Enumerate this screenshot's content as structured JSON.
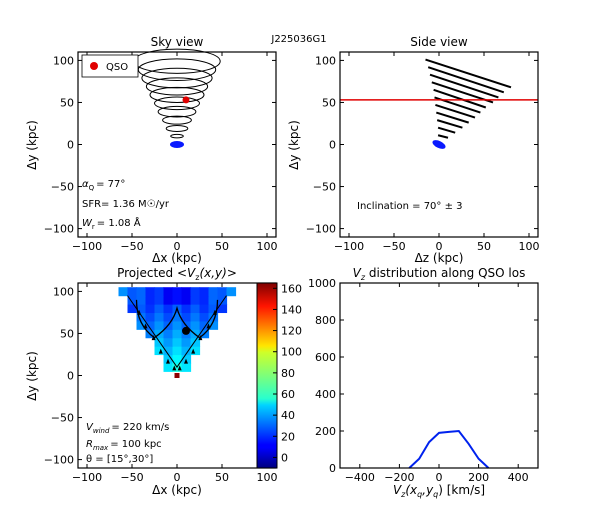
{
  "figure_title": "J225036G1",
  "chart_data": [
    {
      "id": "sky",
      "type": "scatter",
      "title": "Sky view",
      "xlabel": "Δx (kpc)",
      "ylabel": "Δy (kpc)",
      "xlim": [
        -110,
        110
      ],
      "ylim": [
        -110,
        110
      ],
      "xticks": [
        "−100",
        "−50",
        "0",
        "50",
        "100"
      ],
      "yticks": [
        "100",
        "50",
        "0",
        "−50",
        "−100"
      ],
      "legend": {
        "label": "QSO",
        "placement": "top-left"
      },
      "qso": {
        "x": 10,
        "y": 53
      },
      "galaxy": {
        "x": 0,
        "y": 0
      },
      "cone_rings": [
        {
          "y": 99,
          "rx": 48
        },
        {
          "y": 89,
          "rx": 43
        },
        {
          "y": 79,
          "rx": 39
        },
        {
          "y": 69,
          "rx": 34
        },
        {
          "y": 59,
          "rx": 30
        },
        {
          "y": 49,
          "rx": 25
        },
        {
          "y": 39,
          "rx": 21
        },
        {
          "y": 29,
          "rx": 16
        },
        {
          "y": 19,
          "rx": 12
        },
        {
          "y": 10,
          "rx": 7
        }
      ],
      "annotations": {
        "alpha": "α_Q = 77°",
        "alpha_main": "α",
        "alpha_sub": "Q",
        "alpha_val": "=  77°",
        "sfr": "SFR= 1.36 M☉/yr",
        "wr_main": "W",
        "wr_sub": "r",
        "wr_val": "= 1.08 Å"
      }
    },
    {
      "id": "side",
      "type": "line",
      "title": "Side view",
      "xlabel": "Δz (kpc)",
      "ylabel": "Δy (kpc)",
      "xlim": [
        -110,
        110
      ],
      "ylim": [
        -110,
        110
      ],
      "xticks": [
        "−100",
        "−50",
        "0",
        "50",
        "100"
      ],
      "yticks": [
        "100",
        "50",
        "0",
        "−50",
        "−100"
      ],
      "qso_los_y": 53,
      "galaxy": {
        "x": 0,
        "y": 0
      },
      "cone_lines": [
        {
          "y0": 101,
          "x0": -15,
          "x1": 80,
          "y1": 68
        },
        {
          "y0": 92,
          "x0": -12,
          "x1": 72,
          "y1": 62
        },
        {
          "y0": 83,
          "x0": -10,
          "x1": 66,
          "y1": 56
        },
        {
          "y0": 74,
          "x0": -8,
          "x1": 60,
          "y1": 50
        },
        {
          "y0": 65,
          "x0": -6,
          "x1": 52,
          "y1": 44
        },
        {
          "y0": 56,
          "x0": -5,
          "x1": 46,
          "y1": 38
        },
        {
          "y0": 47,
          "x0": -4,
          "x1": 40,
          "y1": 32
        },
        {
          "y0": 38,
          "x0": -3,
          "x1": 33,
          "y1": 26
        },
        {
          "y0": 29,
          "x0": -2,
          "x1": 26,
          "y1": 20
        },
        {
          "y0": 20,
          "x0": -1,
          "x1": 18,
          "y1": 14
        },
        {
          "y0": 11,
          "x0": -1,
          "x1": 10,
          "y1": 8
        }
      ],
      "annotations": {
        "inclination": "Inclination =  70°  ±  3"
      }
    },
    {
      "id": "projected",
      "type": "heatmap",
      "title": "Projected <Vz(x,y)>",
      "title_prefix": "Projected ",
      "title_math": "<V",
      "title_sub": "z",
      "title_math2": "(x,y)>",
      "xlabel": "Δx (kpc)",
      "ylabel": "Δy (kpc)",
      "xlim": [
        -110,
        110
      ],
      "ylim": [
        -110,
        110
      ],
      "xticks": [
        "−100",
        "−50",
        "0",
        "50",
        "100"
      ],
      "yticks": [
        "100",
        "50",
        "0",
        "−50",
        "−100"
      ],
      "colorbar": {
        "min": -10,
        "max": 165,
        "ticks": [
          "160",
          "140",
          "120",
          "100",
          "80",
          "60",
          "40",
          "20",
          "0"
        ]
      },
      "qso": {
        "x": 10,
        "y": 53
      },
      "galaxy": {
        "x": 0,
        "y": 0
      },
      "annotations": {
        "vwind_main": "V",
        "vwind_sub": "wind",
        "vwind_val": "= 220 km/s",
        "rmax_main": "R",
        "rmax_sub": "max",
        "rmax_val": "= 100 kpc",
        "theta": "θ = [15°,30°]"
      }
    },
    {
      "id": "dist",
      "type": "line",
      "title": "Vz distribution along QSO los",
      "title_main": "V",
      "title_sub": "z",
      "title_rest": " distribution along QSO los",
      "xlabel": "Vz(xq,yq) [km/s]",
      "xlabel_main": "V",
      "xlabel_sub": "z",
      "xlabel_rest": "(x",
      "xlabel_sub2": "q",
      "xlabel_rest2": ",y",
      "xlabel_sub3": "q",
      "xlabel_rest3": ") [km/s]",
      "xlim": [
        -500,
        500
      ],
      "ylim": [
        0,
        1000
      ],
      "xticks": [
        "−400",
        "−200",
        "0",
        "200",
        "400"
      ],
      "yticks": [
        "1000",
        "800",
        "600",
        "400",
        "200",
        "0"
      ],
      "series": [
        {
          "x": [
            -150,
            -100,
            -50,
            0,
            50,
            100,
            150,
            200,
            250
          ],
          "y": [
            0,
            50,
            140,
            190,
            195,
            200,
            130,
            50,
            0
          ]
        }
      ]
    }
  ]
}
